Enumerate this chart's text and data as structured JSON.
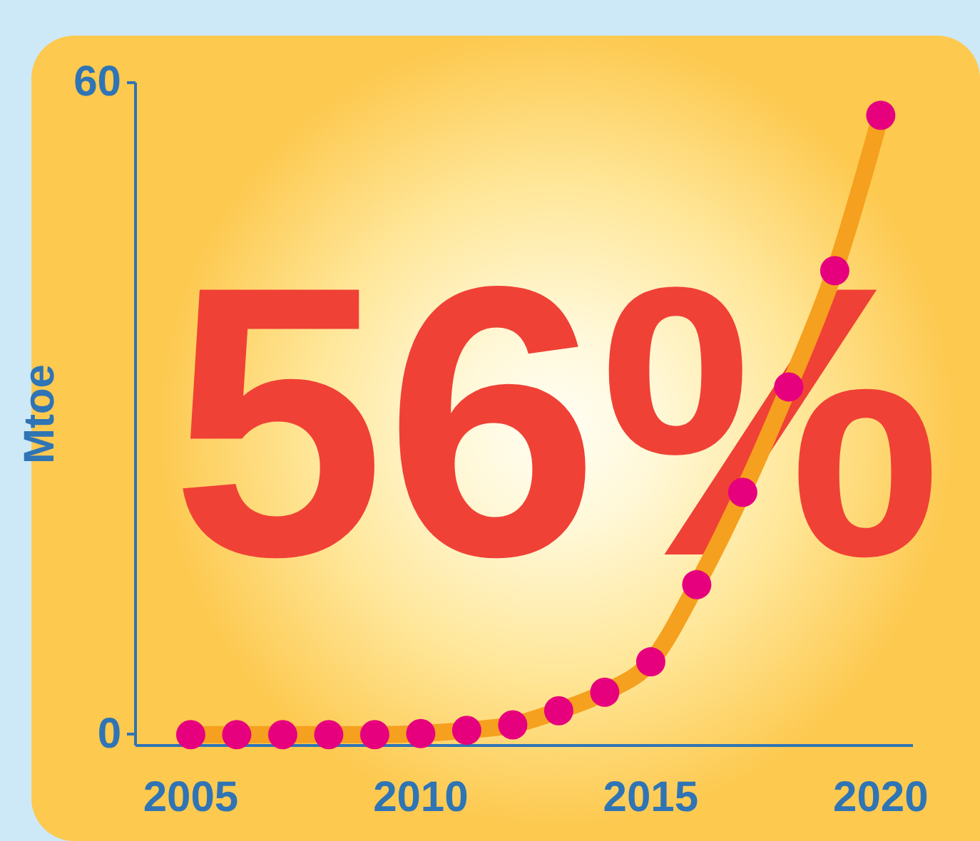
{
  "chart_data": {
    "type": "line",
    "ylabel": "Mtoe",
    "annotations": [
      "56%"
    ],
    "x": [
      2005,
      2006,
      2007,
      2008,
      2009,
      2010,
      2011,
      2012,
      2013,
      2014,
      2015,
      2016,
      2017,
      2018,
      2019,
      2020
    ],
    "series": [
      {
        "color": "#f5a01e",
        "values": [
          0,
          0,
          0,
          0,
          0,
          0.1,
          0.4,
          0.9,
          2.2,
          3.9,
          6.7,
          13.8,
          22.3,
          32,
          42.7,
          57
        ]
      },
      {
        "type": "scatter",
        "color": "#e6007e",
        "values": [
          0,
          0,
          0,
          0,
          0,
          0.1,
          0.4,
          0.9,
          2.2,
          3.9,
          6.7,
          13.8,
          22.3,
          32,
          42.7,
          57
        ]
      }
    ],
    "xlim": [
      2003.8,
      2020.7
    ],
    "xticks": [
      2005,
      2010,
      2015,
      2020
    ],
    "ylim": [
      -1,
      60
    ],
    "yticks": [
      0,
      60
    ],
    "line_style": "solid",
    "grid": false
  }
}
